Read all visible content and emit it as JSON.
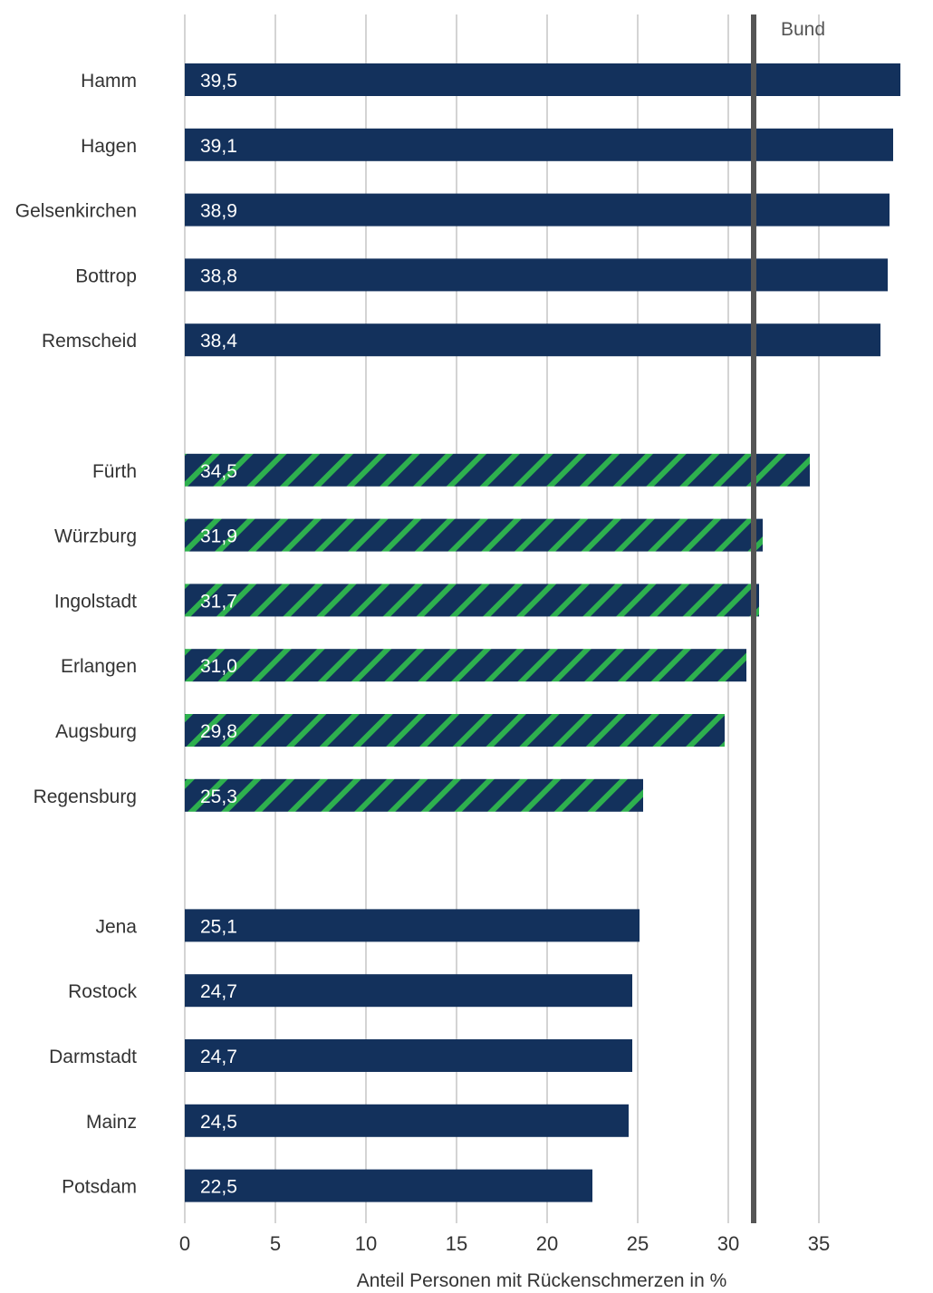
{
  "chart_data": {
    "type": "bar",
    "orientation": "horizontal",
    "xlabel": "Anteil Personen mit Rückenschmerzen in %",
    "xlim": [
      0,
      40
    ],
    "xticks": [
      0,
      5,
      10,
      15,
      20,
      25,
      30,
      35
    ],
    "grid": true,
    "reference_line": {
      "label": "Bund",
      "value": 31.4
    },
    "groups": [
      {
        "style": "solid",
        "categories": [
          "Hamm",
          "Hagen",
          "Gelsenkirchen",
          "Bottrop",
          "Remscheid"
        ],
        "values": [
          39.5,
          39.1,
          38.9,
          38.8,
          38.4
        ],
        "value_labels": [
          "39,5",
          "39,1",
          "38,9",
          "38,8",
          "38,4"
        ]
      },
      {
        "style": "hatched",
        "categories": [
          "Fürth",
          "Würzburg",
          "Ingolstadt",
          "Erlangen",
          "Augsburg",
          "Regensburg"
        ],
        "values": [
          34.5,
          31.9,
          31.7,
          31.0,
          29.8,
          25.3
        ],
        "value_labels": [
          "34,5",
          "31,9",
          "31,7",
          "31,0",
          "29,8",
          "25,3"
        ]
      },
      {
        "style": "solid",
        "categories": [
          "Jena",
          "Rostock",
          "Darmstadt",
          "Mainz",
          "Potsdam"
        ],
        "values": [
          25.1,
          24.7,
          24.7,
          24.5,
          22.5
        ],
        "value_labels": [
          "25,1",
          "24,7",
          "24,7",
          "24,5",
          "22,5"
        ]
      }
    ],
    "colors": {
      "bar": "#13315c",
      "hatch": "#2eb04e",
      "grid": "#aaaaaa",
      "reference_line": "#555555",
      "text": "#333333",
      "value_label": "#ffffff"
    }
  }
}
